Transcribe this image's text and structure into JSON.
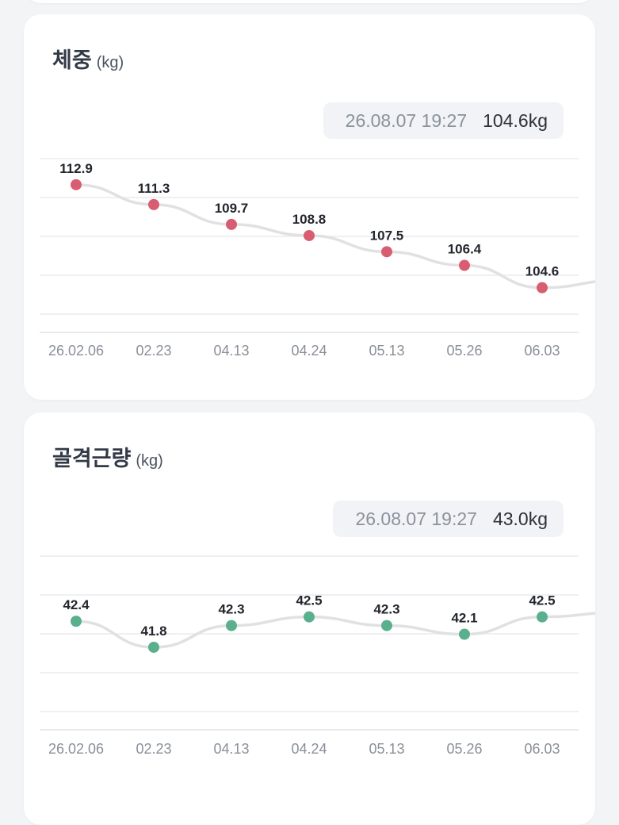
{
  "chart_data": [
    {
      "type": "line",
      "title": "체중",
      "unit": "(kg)",
      "latest": {
        "time": "26.08.07 19:27",
        "value": "104.6kg"
      },
      "categories": [
        "26.02.06",
        "02.23",
        "04.13",
        "04.24",
        "05.13",
        "05.26",
        "06.03"
      ],
      "values": [
        112.9,
        111.3,
        109.7,
        108.8,
        107.5,
        106.4,
        104.6
      ],
      "trailing_value": 105.2,
      "ylim": [
        101,
        115
      ],
      "grid": true,
      "point_color": "#d95d70",
      "line_color": "#e1e1e4"
    },
    {
      "type": "line",
      "title": "골격근량",
      "unit": "(kg)",
      "latest": {
        "time": "26.08.07 19:27",
        "value": "43.0kg"
      },
      "categories": [
        "26.02.06",
        "02.23",
        "04.13",
        "04.24",
        "05.13",
        "05.26",
        "06.03"
      ],
      "values": [
        42.4,
        41.8,
        42.3,
        42.5,
        42.3,
        42.1,
        42.5
      ],
      "trailing_value": 42.6,
      "ylim": [
        39.9,
        43.9
      ],
      "grid": true,
      "point_color": "#5aaf8d",
      "line_color": "#e1e1e4"
    }
  ]
}
